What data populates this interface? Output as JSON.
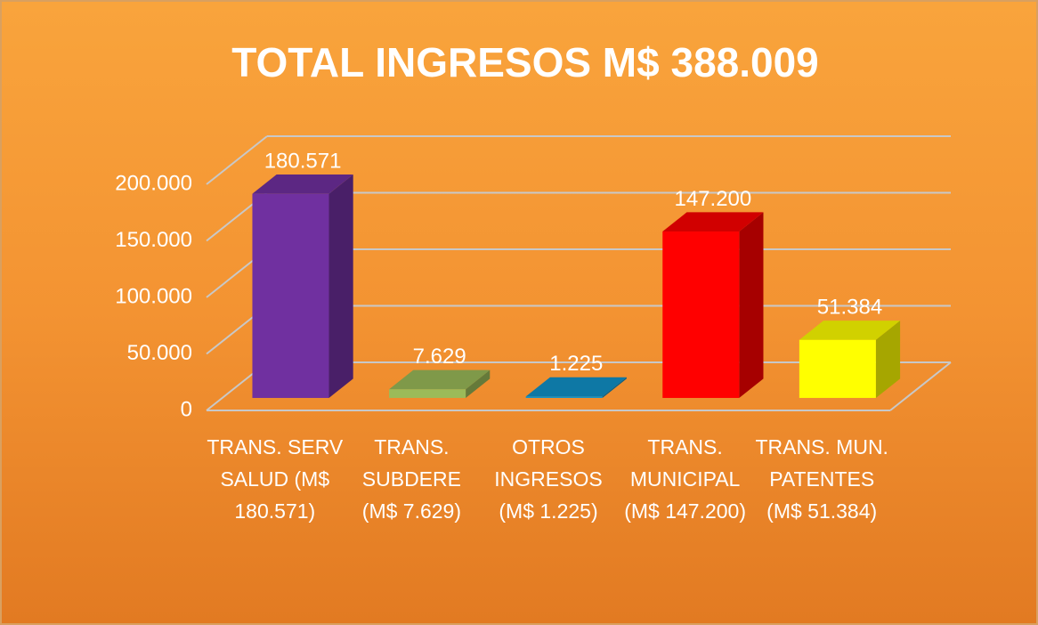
{
  "chart_data": {
    "type": "bar3d",
    "title": "TOTAL INGRESOS M$ 388.009",
    "categories": [
      "TRANS. SERV SALUD (M$ 180.571)",
      "TRANS. SUBDERE (M$ 7.629)",
      "OTROS INGRESOS (M$ 1.225)",
      "TRANS. MUNICIPAL (M$ 147.200)",
      "TRANS. MUN. PATENTES (M$ 51.384)"
    ],
    "values": [
      180571,
      7629,
      1225,
      147200,
      51384
    ],
    "value_labels": [
      "180.571",
      "7.629",
      "1.225",
      "147.200",
      "51.384"
    ],
    "colors": [
      "#7030a0",
      "#9bbb59",
      "#1192c9",
      "#ff0000",
      "#ffff00"
    ],
    "ylim": [
      0,
      200000
    ],
    "yticks": [
      0,
      {
        "value": 50000,
        "label": "50.000"
      },
      {
        "value": 100000,
        "label": "100.000"
      },
      {
        "value": 150000,
        "label": "150.000"
      },
      {
        "value": 200000,
        "label": "200.000"
      }
    ],
    "grid": true
  }
}
